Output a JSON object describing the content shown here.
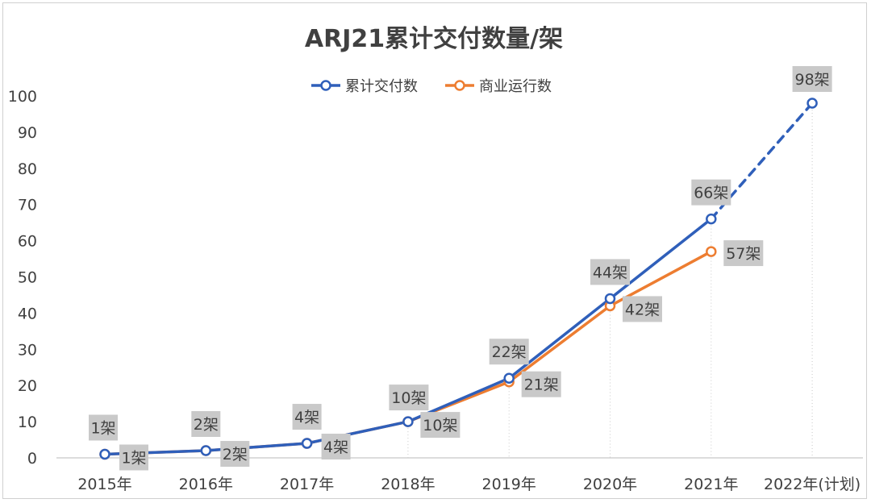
{
  "chart_data": {
    "type": "line",
    "title": "ARJ21累计交付数量/架",
    "categories": [
      "2015年",
      "2016年",
      "2017年",
      "2018年",
      "2019年",
      "2020年",
      "2021年",
      "2022年(计划)"
    ],
    "y_ticks": [
      "0",
      "10",
      "20",
      "30",
      "40",
      "50",
      "60",
      "70",
      "80",
      "90",
      "100"
    ],
    "ylim": [
      0,
      100
    ],
    "grid": false,
    "legend_position": "top",
    "series": [
      {
        "name": "累计交付数",
        "color": "#2f5fba",
        "values": [
          1,
          2,
          4,
          10,
          22,
          44,
          66,
          98
        ],
        "labels": [
          "1架",
          "2架",
          "4架",
          "10架",
          "22架",
          "44架",
          "66架",
          "98架"
        ],
        "dashed_segment": "2021年-2022年(计划)"
      },
      {
        "name": "商业运行数",
        "color": "#ed7d31",
        "values": [
          1,
          2,
          4,
          10,
          21,
          42,
          57,
          null
        ],
        "labels": [
          "1架",
          "2架",
          "4架",
          "10架",
          "21架",
          "42架",
          "57架",
          null
        ]
      }
    ]
  }
}
